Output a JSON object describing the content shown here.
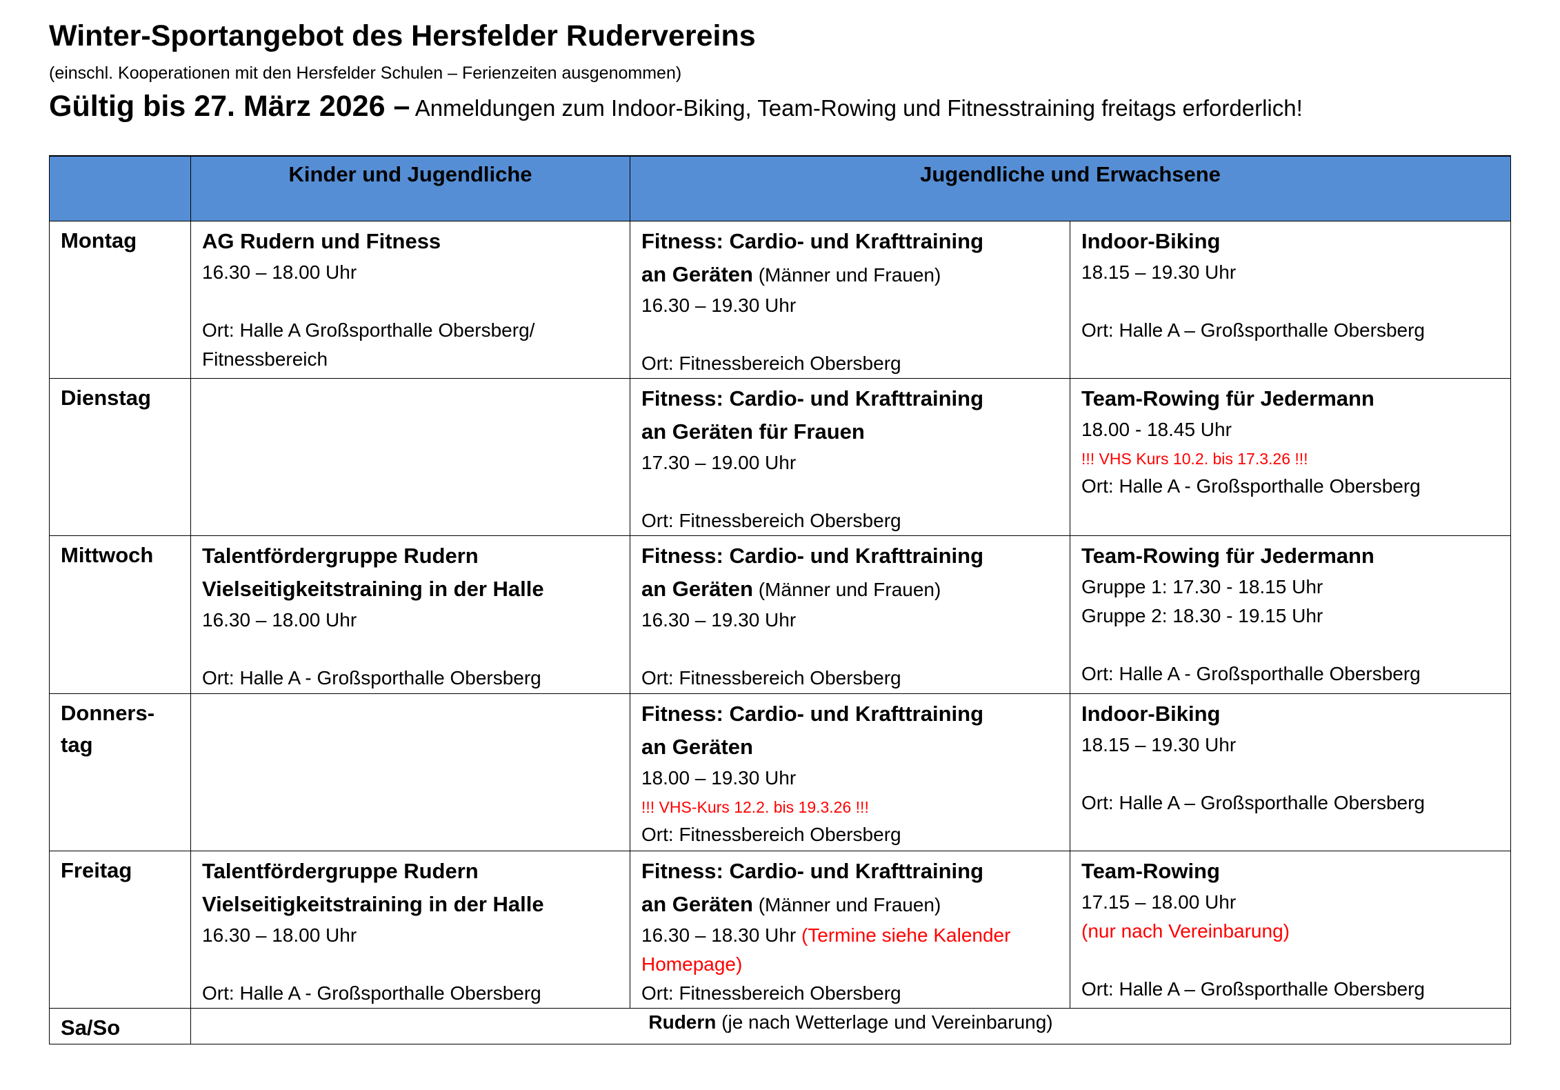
{
  "header": {
    "title": "Winter-Sportangebot des Hersfelder Rudervereins",
    "subtitle": "(einschl. Kooperationen mit den Hersfelder Schulen  – Ferienzeiten ausgenommen)",
    "valid_bold": "Gültig bis 27. März 2026 –",
    "valid_rest": " Anmeldungen zum Indoor-Biking, Team-Rowing und Fitnesstraining freitags erforderlich!"
  },
  "colors": {
    "header_bg": "#558ED5",
    "red": "#FF0000"
  },
  "table": {
    "columns": [
      "",
      "Kinder und Jugendliche",
      "Jugendliche und Erwachsene"
    ],
    "rows": [
      {
        "day": "Montag",
        "cells": [
          [
            [
              {
                "t": "AG Rudern und Fitness",
                "s": "b"
              }
            ],
            [
              {
                "t": "16.30 – 18.00 Uhr",
                "s": "n"
              }
            ],
            [],
            [
              {
                "t": "Ort: Halle A Großsporthalle Obersberg/",
                "s": "n"
              }
            ],
            [
              {
                "t": "Fitnessbereich",
                "s": "n"
              }
            ]
          ],
          [
            [
              {
                "t": "Fitness: Cardio- und Krafttraining",
                "s": "b"
              }
            ],
            [
              {
                "t": "an Geräten",
                "s": "b"
              },
              {
                "t": " (Männer und Frauen)",
                "s": "n"
              }
            ],
            [
              {
                "t": "16.30 – 19.30 Uhr",
                "s": "n"
              }
            ],
            [],
            [
              {
                "t": "Ort:  Fitnessbereich Obersberg",
                "s": "n"
              }
            ]
          ],
          [
            [
              {
                "t": "Indoor-Biking",
                "s": "b"
              }
            ],
            [
              {
                "t": "18.15 – 19.30 Uhr",
                "s": "n"
              }
            ],
            [],
            [
              {
                "t": "Ort: Halle A – Großsporthalle Obersberg",
                "s": "n"
              }
            ]
          ]
        ]
      },
      {
        "day": "Dienstag",
        "cells": [
          [],
          [
            [
              {
                "t": "Fitness: Cardio- und Krafttraining",
                "s": "b"
              }
            ],
            [
              {
                "t": "an Geräten für Frauen",
                "s": "b"
              }
            ],
            [
              {
                "t": "17.30 – 19.00 Uhr",
                "s": "n"
              }
            ],
            [],
            [
              {
                "t": "Ort:  Fitnessbereich Obersberg",
                "s": "n"
              }
            ]
          ],
          [
            [
              {
                "t": "Team-Rowing für Jedermann",
                "s": "b"
              }
            ],
            [
              {
                "t": "18.00 - 18.45 Uhr",
                "s": "n"
              }
            ],
            [
              {
                "t": "!!! VHS Kurs 10.2. bis 17.3.26 !!!",
                "s": "r"
              }
            ],
            [
              {
                "t": "Ort: Halle A - Großsporthalle Obersberg",
                "s": "n"
              }
            ]
          ]
        ]
      },
      {
        "day": "Mittwoch",
        "cells": [
          [
            [
              {
                "t": "Talentfördergruppe Rudern",
                "s": "b"
              }
            ],
            [
              {
                "t": "Vielseitigkeitstraining in der Halle",
                "s": "b"
              }
            ],
            [
              {
                "t": "16.30 – 18.00 Uhr",
                "s": "n"
              }
            ],
            [],
            [
              {
                "t": "Ort: Halle A - Großsporthalle Obersberg",
                "s": "n"
              }
            ]
          ],
          [
            [
              {
                "t": "Fitness: Cardio- und Krafttraining",
                "s": "b"
              }
            ],
            [
              {
                "t": "an Geräten",
                "s": "b"
              },
              {
                "t": " (Männer und Frauen)",
                "s": "n"
              }
            ],
            [
              {
                "t": "16.30 – 19.30 Uhr",
                "s": "n"
              }
            ],
            [],
            [
              {
                "t": "Ort: Fitnessbereich Obersberg",
                "s": "n"
              }
            ]
          ],
          [
            [
              {
                "t": "Team-Rowing für Jedermann",
                "s": "b"
              }
            ],
            [
              {
                "t": "Gruppe 1: 17.30 - 18.15 Uhr",
                "s": "n"
              }
            ],
            [
              {
                "t": "Gruppe 2: 18.30 - 19.15 Uhr",
                "s": "n"
              }
            ],
            [],
            [
              {
                "t": "Ort: Halle A - Großsporthalle Obersberg",
                "s": "n"
              }
            ]
          ]
        ]
      },
      {
        "day": "Donners-\ntag",
        "cells": [
          [],
          [
            [
              {
                "t": "Fitness: Cardio- und Krafttraining",
                "s": "b"
              }
            ],
            [
              {
                "t": "an Geräten",
                "s": "b"
              }
            ],
            [
              {
                "t": "18.00 – 19.30 Uhr",
                "s": "n"
              }
            ],
            [
              {
                "t": "!!! VHS-Kurs 12.2. bis 19.3.26 !!!",
                "s": "r"
              }
            ],
            [
              {
                "t": "Ort: Fitnessbereich Obersberg",
                "s": "n"
              }
            ]
          ],
          [
            [
              {
                "t": "Indoor-Biking",
                "s": "b"
              }
            ],
            [
              {
                "t": "18.15 – 19.30 Uhr",
                "s": "n"
              }
            ],
            [],
            [
              {
                "t": "Ort: Halle A – Großsporthalle Obersberg",
                "s": "n"
              }
            ]
          ]
        ]
      },
      {
        "day": "Freitag",
        "cells": [
          [
            [
              {
                "t": "Talentfördergruppe Rudern",
                "s": "b"
              }
            ],
            [
              {
                "t": "Vielseitigkeitstraining in der Halle",
                "s": "b"
              }
            ],
            [
              {
                "t": "16.30 – 18.00 Uhr",
                "s": "n"
              }
            ],
            [],
            [
              {
                "t": "Ort: Halle A - Großsporthalle Obersberg",
                "s": "n"
              }
            ]
          ],
          [
            [
              {
                "t": "Fitness: Cardio- und Krafttraining",
                "s": "b"
              }
            ],
            [
              {
                "t": "an Geräten",
                "s": "b"
              },
              {
                "t": " (Männer und Frauen)",
                "s": "n"
              }
            ],
            [
              {
                "t": "16.30 – 18.30 Uhr ",
                "s": "n"
              },
              {
                "t": "(Termine siehe Kalender",
                "s": "rn"
              }
            ],
            [
              {
                "t": "Homepage)",
                "s": "rn"
              }
            ],
            [
              {
                "t": "Ort: Fitnessbereich Obersberg",
                "s": "n"
              }
            ]
          ],
          [
            [
              {
                "t": "Team-Rowing",
                "s": "b"
              }
            ],
            [
              {
                "t": "17.15 – 18.00 Uhr",
                "s": "n"
              }
            ],
            [
              {
                "t": "(nur nach Vereinbarung)",
                "s": "rn"
              }
            ],
            [],
            [
              {
                "t": "Ort: Halle A – Großsporthalle Obersberg",
                "s": "n"
              }
            ]
          ]
        ]
      }
    ],
    "weekend": {
      "day": "Sa/So",
      "bold": "Rudern",
      "rest": " (je nach Wetterlage und Vereinbarung)"
    }
  }
}
